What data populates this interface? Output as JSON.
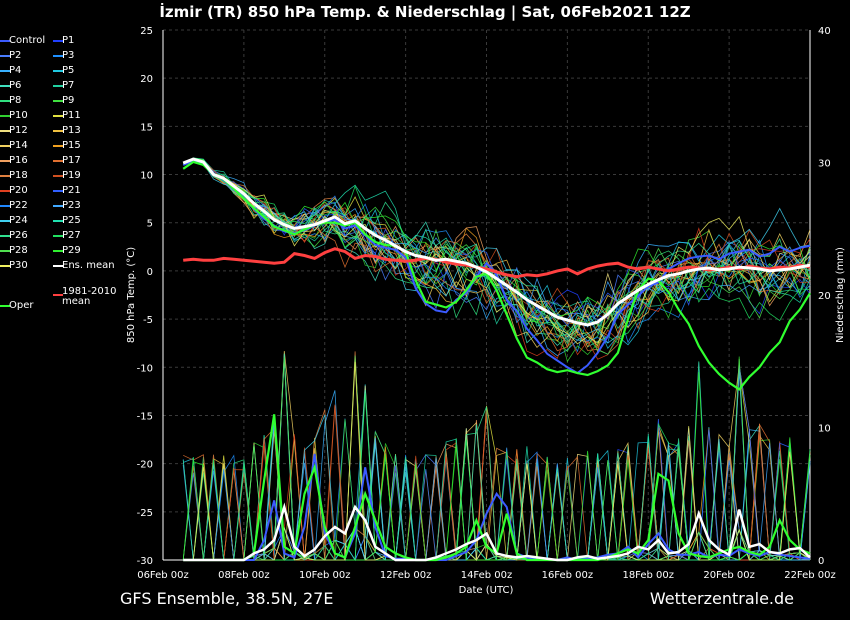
{
  "header": {
    "title": "İzmir  (TR)  850 hPa Temp. & Niederschlag | Sat, 06Feb2021 12Z"
  },
  "footer": {
    "left": "GFS Ensemble, 38.5N, 27E",
    "right": "Wetterzentrale.de"
  },
  "legend": [
    {
      "label": "Control",
      "color": "#3b5bff"
    },
    {
      "label": "P1",
      "color": "#2040ff"
    },
    {
      "label": "P2",
      "color": "#4a7dff"
    },
    {
      "label": "P3",
      "color": "#1e90ff"
    },
    {
      "label": "P4",
      "color": "#38b0ff"
    },
    {
      "label": "P5",
      "color": "#20c8e0"
    },
    {
      "label": "P6",
      "color": "#40e0c0"
    },
    {
      "label": "P7",
      "color": "#20d0a0"
    },
    {
      "label": "P8",
      "color": "#30e080"
    },
    {
      "label": "P9",
      "color": "#40e040"
    },
    {
      "label": "P10",
      "color": "#30d030"
    },
    {
      "label": "P11",
      "color": "#e0e040"
    },
    {
      "label": "P12",
      "color": "#f0e080"
    },
    {
      "label": "P13",
      "color": "#f0c040"
    },
    {
      "label": "P14",
      "color": "#f0d060"
    },
    {
      "label": "P15",
      "color": "#f0a020"
    },
    {
      "label": "P16",
      "color": "#f0a060"
    },
    {
      "label": "P17",
      "color": "#e07030"
    },
    {
      "label": "P18",
      "color": "#e08040"
    },
    {
      "label": "P19",
      "color": "#d05020"
    },
    {
      "label": "P20",
      "color": "#e04020"
    },
    {
      "label": "P21",
      "color": "#3060ff"
    },
    {
      "label": "P22",
      "color": "#2088ff"
    },
    {
      "label": "P23",
      "color": "#40a8ff"
    },
    {
      "label": "P24",
      "color": "#40d0f0"
    },
    {
      "label": "P25",
      "color": "#20e0b0"
    },
    {
      "label": "P26",
      "color": "#30e090"
    },
    {
      "label": "P27",
      "color": "#20e060"
    },
    {
      "label": "P28",
      "color": "#50e050"
    },
    {
      "label": "P29",
      "color": "#30f030"
    },
    {
      "label": "P30",
      "color": "#f0f060"
    },
    {
      "label": "Ens. mean",
      "color": "#ffffff"
    },
    {
      "label": "1981-2010 mean",
      "color": "#ff4040"
    },
    {
      "label": "Oper",
      "color": "#30ff30"
    }
  ],
  "chart_data": {
    "type": "line",
    "xlabel": "Date (UTC)",
    "ylabel": "850 hPa Temp. (°C)",
    "y2label": "Niederschlag (mm)",
    "ylim": [
      -30,
      25
    ],
    "y2lim": [
      0,
      40
    ],
    "yticks": [
      "25",
      "20",
      "15",
      "10",
      "5",
      "0",
      "-5",
      "-10",
      "-15",
      "-20",
      "-25",
      "-30"
    ],
    "y2ticks": [
      "40",
      "30",
      "20",
      "10",
      "0"
    ],
    "xticks": [
      "06Feb 00z",
      "08Feb 00z",
      "10Feb 00z",
      "12Feb 00z",
      "14Feb 00z",
      "16Feb 00z",
      "18Feb 00z",
      "20Feb 00z",
      "22Feb 00z"
    ],
    "x_hours": [
      12,
      18,
      24,
      30,
      36,
      42,
      48,
      54,
      60,
      66,
      72,
      78,
      84,
      90,
      96,
      102,
      108,
      114,
      120,
      126,
      132,
      138,
      144,
      150,
      156,
      162,
      168,
      174,
      180,
      186,
      192,
      198,
      204,
      210,
      216,
      222,
      228,
      234,
      240,
      246,
      252,
      258,
      264,
      270,
      276,
      282,
      288,
      294,
      300,
      306,
      312,
      318,
      324,
      330,
      336,
      342,
      348,
      354,
      360,
      366,
      372,
      378,
      384
    ],
    "ens_mean_temp": [
      11.2,
      11.6,
      11.3,
      10.0,
      9.6,
      8.8,
      8.0,
      7.0,
      6.2,
      5.3,
      4.8,
      4.4,
      4.6,
      4.8,
      5.2,
      5.6,
      4.9,
      5.2,
      4.4,
      3.7,
      3.2,
      2.6,
      2.0,
      1.6,
      1.4,
      1.1,
      1.2,
      1.0,
      0.8,
      0.4,
      -0.1,
      -0.8,
      -1.5,
      -2.2,
      -3.0,
      -3.6,
      -4.2,
      -4.8,
      -5.1,
      -5.4,
      -5.6,
      -5.3,
      -4.5,
      -3.4,
      -2.7,
      -2.0,
      -1.4,
      -0.9,
      -0.5,
      -0.3,
      0.0,
      0.2,
      0.3,
      0.1,
      0.2,
      0.4,
      0.3,
      0.2,
      0.0,
      0.1,
      0.2,
      0.4,
      0.6
    ],
    "climate_mean_temp": [
      1.1,
      1.2,
      1.1,
      1.1,
      1.3,
      1.2,
      1.1,
      1.0,
      0.9,
      0.8,
      0.9,
      1.8,
      1.6,
      1.3,
      1.9,
      2.3,
      2.0,
      1.3,
      1.6,
      1.5,
      1.2,
      1.1,
      1.0,
      1.1,
      1.3,
      1.2,
      0.9,
      0.7,
      0.6,
      0.4,
      0.2,
      -0.1,
      -0.4,
      -0.6,
      -0.4,
      -0.5,
      -0.3,
      0.0,
      0.2,
      -0.3,
      0.2,
      0.5,
      0.7,
      0.8,
      0.4,
      0.2,
      0.4,
      0.2,
      0.0,
      0.2,
      0.4,
      0.3,
      0.1,
      0.2,
      0.4,
      0.2,
      0.5,
      0.3,
      0.2,
      0.4,
      0.3,
      0.6,
      0.4
    ],
    "oper_temp": [
      10.6,
      11.3,
      11.0,
      10.0,
      9.5,
      8.5,
      7.5,
      6.5,
      5.6,
      4.6,
      4.2,
      3.8,
      4.3,
      4.8,
      5.0,
      5.0,
      4.7,
      5.0,
      3.8,
      3.0,
      2.7,
      2.6,
      2.0,
      -1.0,
      -3.2,
      -3.5,
      -3.8,
      -3.2,
      -2.0,
      -0.6,
      -0.3,
      -2.0,
      -4.5,
      -7.0,
      -9.0,
      -9.5,
      -10.2,
      -10.5,
      -10.3,
      -10.6,
      -10.8,
      -10.4,
      -9.8,
      -8.5,
      -5.0,
      -2.0,
      -0.8,
      -1.0,
      -2.2,
      -4.0,
      -5.5,
      -7.8,
      -9.5,
      -10.7,
      -11.6,
      -12.3,
      -11.0,
      -10.0,
      -8.5,
      -7.4,
      -5.2,
      -4.0,
      -2.3
    ],
    "ens_mean_precip": [
      0,
      0,
      0,
      0,
      0,
      0,
      0,
      0.5,
      0.8,
      1.5,
      4.0,
      1.0,
      0.3,
      0.8,
      1.8,
      2.5,
      2.0,
      4.0,
      3.0,
      1.0,
      0.5,
      0,
      0,
      0,
      0,
      0.2,
      0.5,
      0.8,
      1.2,
      1.5,
      2.0,
      0.5,
      0.3,
      0.2,
      0.3,
      0.2,
      0.1,
      0,
      0,
      0.2,
      0.3,
      0.1,
      0.2,
      0.3,
      0.5,
      1.0,
      0.8,
      1.5,
      0.5,
      0.6,
      1.2,
      3.5,
      1.5,
      0.8,
      0.4,
      3.8,
      1.0,
      1.2,
      0.6,
      0.5,
      0.8,
      0.9,
      0.2
    ],
    "oper_precip": [
      0,
      0,
      0,
      0,
      0,
      0,
      0,
      0.5,
      6.0,
      11.0,
      1.0,
      0.5,
      5.0,
      7.0,
      2.5,
      0.5,
      0.2,
      2.5,
      5.0,
      3.0,
      1.0,
      0.5,
      0.2,
      0,
      0,
      0,
      0.2,
      0.5,
      1.0,
      3.0,
      1.0,
      0.5,
      3.5,
      0.5,
      0,
      0,
      0,
      0,
      0,
      0,
      0,
      0,
      0.2,
      0.5,
      0.8,
      0.5,
      1.5,
      6.5,
      6.0,
      2.0,
      0.5,
      0.3,
      0.2,
      0.5,
      0.8,
      1.0,
      0.6,
      0.4,
      1.0,
      3.0,
      1.5,
      0.8,
      0.5
    ],
    "control_temp": [
      11.0,
      11.4,
      11.2,
      10.1,
      9.4,
      8.4,
      7.6,
      6.4,
      5.4,
      4.7,
      4.1,
      3.9,
      4.2,
      4.7,
      5.1,
      5.3,
      4.4,
      4.7,
      3.7,
      2.7,
      2.4,
      2.2,
      1.4,
      -1.8,
      -3.4,
      -4.1,
      -4.3,
      -3.0,
      -2.3,
      -0.6,
      0.8,
      -0.4,
      -3.0,
      -4.2,
      -6.0,
      -7.2,
      -8.6,
      -9.3,
      -10.0,
      -10.6,
      -9.8,
      -8.5,
      -6.8,
      -4.5,
      -3.5,
      -2.6,
      -1.6,
      -1.2,
      0.2,
      0.8,
      1.3,
      1.5,
      1.6,
      1.2,
      1.8,
      2.0,
      2.2,
      1.5,
      1.8,
      2.5,
      2.0,
      2.4,
      2.6
    ],
    "control_precip": [
      0,
      0,
      0,
      0,
      0,
      0,
      0,
      0,
      1.5,
      4.5,
      0.5,
      0.2,
      2.5,
      8.0,
      2.0,
      0.5,
      0.2,
      2.0,
      7.0,
      2.5,
      0.3,
      0.1,
      0.1,
      0,
      0,
      0,
      0,
      0.3,
      0.6,
      1.5,
      3.5,
      5.0,
      4.0,
      0.5,
      0.2,
      0,
      0,
      0,
      0.2,
      0,
      0.1,
      0.2,
      0.4,
      0.5,
      1.0,
      0.2,
      1.2,
      2.0,
      0.8,
      0.4,
      0.4,
      0.6,
      0.2,
      0.4,
      0.3,
      0.8,
      0.5,
      0.3,
      0.6,
      0.4,
      0.3,
      0.2,
      0.1
    ]
  }
}
